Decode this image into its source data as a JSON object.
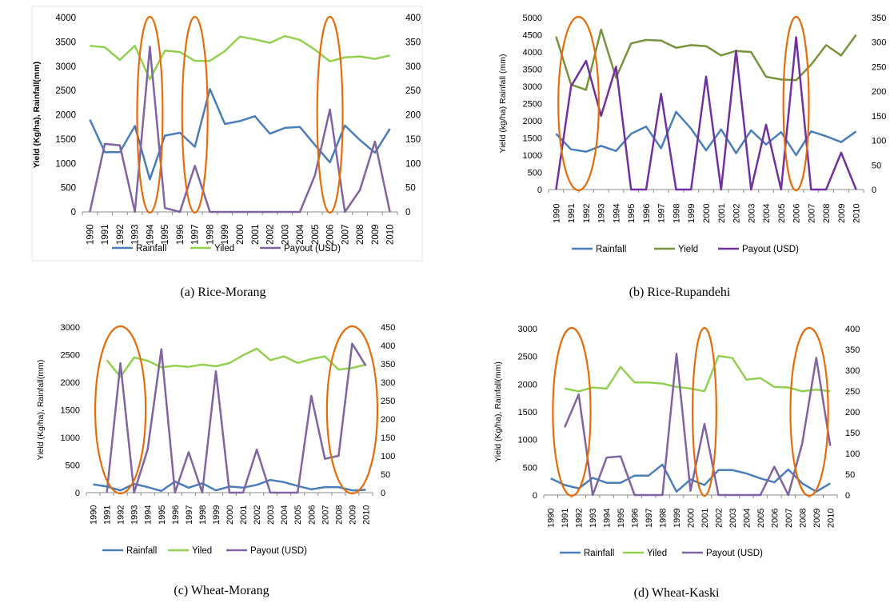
{
  "chart_data": [
    {
      "type": "line",
      "caption": "(a) Rice-Morang",
      "ylabel": "Yield (Kg/ha), Rainfall(mm)",
      "x": [
        "1990",
        "1991",
        "1992",
        "1993",
        "1994",
        "1995",
        "1996",
        "1997",
        "1998",
        "1999",
        "2000",
        "2001",
        "2002",
        "2003",
        "2004",
        "2005",
        "2006",
        "2007",
        "2008",
        "2009",
        "2010"
      ],
      "ylim": [
        0,
        4000
      ],
      "yticks": [
        "0",
        "500",
        "1000",
        "1500",
        "2000",
        "2500",
        "3000",
        "3500",
        "4000"
      ],
      "y2lim": [
        0,
        400
      ],
      "y2ticks": [
        "0",
        "50",
        "100",
        "150",
        "200",
        "250",
        "300",
        "350",
        "400"
      ],
      "series": [
        {
          "name": "Rainfall",
          "color": "#4a7ebb",
          "axis": "left",
          "values": [
            1900,
            1230,
            1230,
            1770,
            670,
            1570,
            1630,
            1340,
            2530,
            1810,
            1870,
            1970,
            1610,
            1730,
            1750,
            1380,
            1020,
            1780,
            1480,
            1220,
            1710
          ]
        },
        {
          "name": "Yiled",
          "color": "#92d050",
          "axis": "left",
          "values": [
            3420,
            3390,
            3130,
            3420,
            2730,
            3320,
            3290,
            3110,
            3110,
            3310,
            3610,
            3550,
            3480,
            3620,
            3540,
            3340,
            3100,
            3180,
            3200,
            3150,
            3220
          ]
        },
        {
          "name": "Payout (USD)",
          "color": "#8064a2",
          "axis": "right",
          "values": [
            0,
            140,
            137,
            0,
            340,
            8,
            0,
            95,
            0,
            0,
            0,
            0,
            0,
            0,
            0,
            75,
            211,
            0,
            45,
            145,
            0
          ]
        }
      ],
      "highlight_years": [
        [
          "1994"
        ],
        [
          "1997"
        ],
        [
          "2006"
        ]
      ]
    },
    {
      "type": "line",
      "caption": "(b) Rice-Rupandehi",
      "ylabel": "Yield (kg/ha) Rainfall (mm)",
      "x": [
        "1990",
        "1991",
        "1992",
        "1993",
        "1994",
        "1995",
        "1996",
        "1997",
        "1998",
        "1999",
        "2000",
        "2001",
        "2002",
        "2003",
        "2004",
        "2005",
        "2006",
        "2007",
        "2008",
        "2009",
        "2010"
      ],
      "ylim": [
        0,
        5000
      ],
      "yticks": [
        "0",
        "500",
        "1000",
        "1500",
        "2000",
        "2500",
        "3000",
        "3500",
        "4000",
        "4500",
        "5000"
      ],
      "y2lim": [
        0,
        350
      ],
      "y2ticks": [
        "0",
        "50",
        "100",
        "150",
        "200",
        "250",
        "300",
        "350"
      ],
      "series": [
        {
          "name": "Rainfall",
          "color": "#4a7ebb",
          "axis": "left",
          "values": [
            1620,
            1170,
            1100,
            1270,
            1120,
            1620,
            1830,
            1200,
            2260,
            1770,
            1140,
            1750,
            1060,
            1720,
            1310,
            1670,
            1000,
            1690,
            1550,
            1380,
            1690
          ]
        },
        {
          "name": "Yield",
          "color": "#77933c",
          "axis": "left",
          "values": [
            4450,
            3050,
            2900,
            4650,
            3250,
            4250,
            4350,
            4330,
            4120,
            4200,
            4170,
            3900,
            4030,
            4000,
            3280,
            3200,
            3180,
            3630,
            4200,
            3900,
            4500
          ]
        },
        {
          "name": "Payout (USD)",
          "color": "#7030a0",
          "axis": "right",
          "values": [
            0,
            210,
            262,
            150,
            250,
            0,
            0,
            195,
            0,
            0,
            230,
            0,
            283,
            0,
            132,
            0,
            310,
            0,
            0,
            75,
            0
          ]
        }
      ],
      "highlight_years": [
        [
          "1991",
          "1992"
        ],
        [
          "2006"
        ]
      ]
    },
    {
      "type": "line",
      "caption": "(c) Wheat-Morang",
      "ylabel": "Yield (Kg/ha), Rainfall(mm)",
      "x": [
        "1990",
        "1991",
        "1992",
        "1993",
        "1994",
        "1995",
        "1996",
        "1997",
        "1998",
        "1999",
        "2000",
        "2001",
        "2002",
        "2003",
        "2004",
        "2005",
        "2006",
        "2007",
        "2008",
        "2009",
        "2010"
      ],
      "ylim": [
        0,
        3000
      ],
      "yticks": [
        "0",
        "500",
        "1000",
        "1500",
        "2000",
        "2500",
        "3000"
      ],
      "y2lim": [
        0,
        450
      ],
      "y2ticks": [
        "0",
        "50",
        "100",
        "150",
        "200",
        "250",
        "300",
        "350",
        "400",
        "450"
      ],
      "series": [
        {
          "name": "Rainfall",
          "color": "#4a7ebb",
          "axis": "left",
          "values": [
            150,
            110,
            40,
            160,
            100,
            30,
            200,
            90,
            170,
            40,
            110,
            90,
            140,
            230,
            190,
            120,
            60,
            100,
            100,
            40,
            50
          ]
        },
        {
          "name": "Yiled",
          "color": "#92d050",
          "axis": "left",
          "values": [
            null,
            2400,
            2100,
            2450,
            2390,
            2270,
            2300,
            2280,
            2320,
            2290,
            2350,
            2490,
            2610,
            2400,
            2470,
            2350,
            2420,
            2470,
            2230,
            2260,
            2320
          ]
        },
        {
          "name": "Payout (USD)",
          "color": "#8064a2",
          "axis": "right",
          "values": [
            null,
            0,
            352,
            0,
            118,
            390,
            0,
            110,
            0,
            330,
            0,
            0,
            117,
            0,
            0,
            0,
            263,
            92,
            100,
            405,
            345
          ]
        }
      ],
      "highlight_years": [
        [
          "1991",
          "1992",
          "1993"
        ],
        [
          "2008",
          "2009",
          "2010"
        ]
      ]
    },
    {
      "type": "line",
      "caption": "(d) Wheat-Kaski",
      "ylabel": "Yield (Kg/ha), Rainfall(mm)",
      "x": [
        "1990",
        "1991",
        "1992",
        "1993",
        "1994",
        "1995",
        "1996",
        "1997",
        "1998",
        "1999",
        "2000",
        "2001",
        "2002",
        "2003",
        "2004",
        "2005",
        "2006",
        "2007",
        "2008",
        "2009",
        "2010"
      ],
      "ylim": [
        0,
        3000
      ],
      "yticks": [
        "0",
        "500",
        "1000",
        "1500",
        "2000",
        "2500",
        "3000"
      ],
      "y2lim": [
        0,
        400
      ],
      "y2ticks": [
        "0",
        "50",
        "100",
        "150",
        "200",
        "250",
        "300",
        "350",
        "400"
      ],
      "series": [
        {
          "name": "Rainfall",
          "color": "#4a7ebb",
          "axis": "left",
          "values": [
            300,
            180,
            120,
            310,
            220,
            220,
            350,
            350,
            550,
            60,
            280,
            180,
            450,
            450,
            390,
            300,
            230,
            460,
            210,
            60,
            210
          ]
        },
        {
          "name": "Yiled",
          "color": "#92d050",
          "axis": "left",
          "values": [
            null,
            1920,
            1870,
            1940,
            1920,
            2310,
            2030,
            2030,
            2010,
            1950,
            1920,
            1870,
            2510,
            2470,
            2080,
            2110,
            1950,
            1940,
            1870,
            1900,
            1870
          ]
        },
        {
          "name": "Payout (USD)",
          "color": "#8064a2",
          "axis": "right",
          "values": [
            null,
            163,
            242,
            0,
            90,
            93,
            0,
            0,
            0,
            340,
            10,
            171,
            0,
            0,
            0,
            0,
            68,
            0,
            125,
            330,
            118
          ]
        }
      ],
      "highlight_years": [
        [
          "1991",
          "1992"
        ],
        [
          "2001"
        ],
        [
          "2008",
          "2009"
        ]
      ]
    }
  ]
}
